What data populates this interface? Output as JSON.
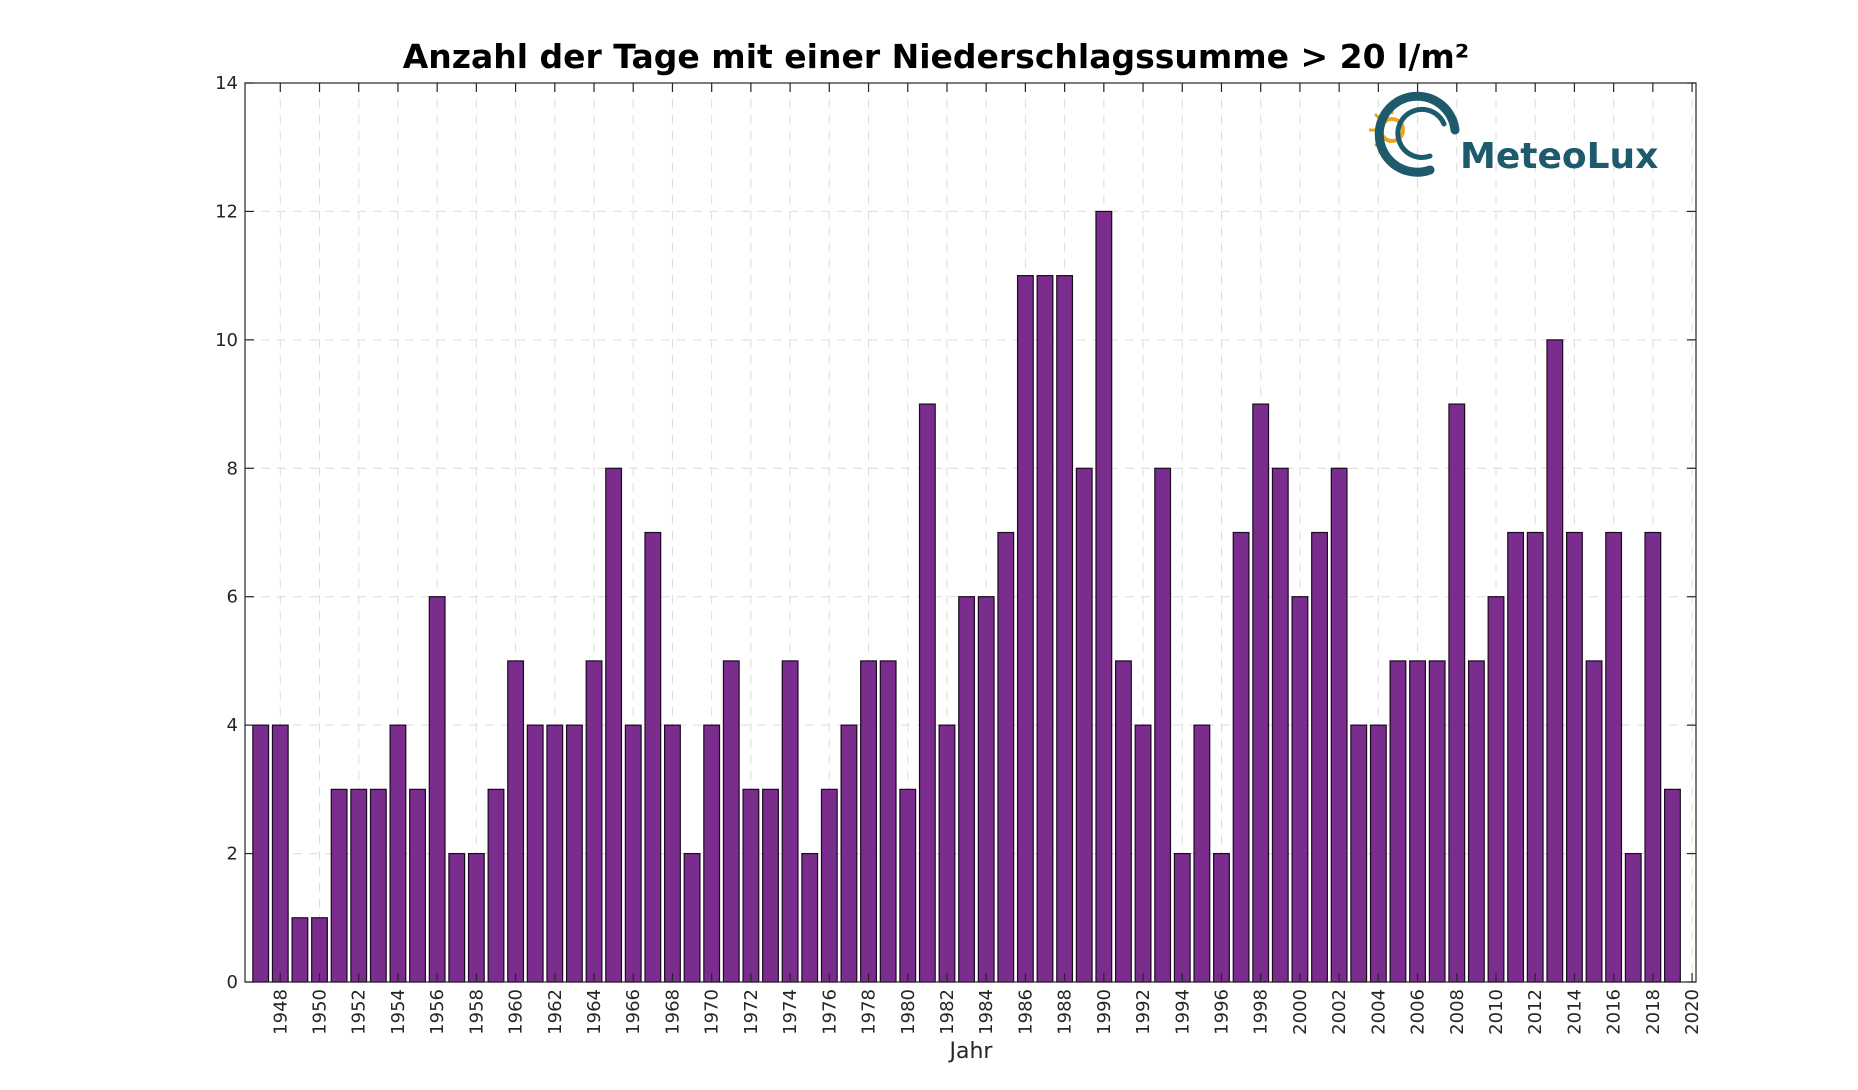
{
  "chart_data": {
    "type": "bar",
    "title": "Anzahl der Tage mit einer Niederschlagssumme > 20 l/m²",
    "xlabel": "Jahr",
    "ylabel": "",
    "x": [
      1947,
      1948,
      1949,
      1950,
      1951,
      1952,
      1953,
      1954,
      1955,
      1956,
      1957,
      1958,
      1959,
      1960,
      1961,
      1962,
      1963,
      1964,
      1965,
      1966,
      1967,
      1968,
      1969,
      1970,
      1971,
      1972,
      1973,
      1974,
      1975,
      1976,
      1977,
      1978,
      1979,
      1980,
      1981,
      1982,
      1983,
      1984,
      1985,
      1986,
      1987,
      1988,
      1989,
      1990,
      1991,
      1992,
      1993,
      1994,
      1995,
      1996,
      1997,
      1998,
      1999,
      2000,
      2001,
      2002,
      2003,
      2004,
      2005,
      2006,
      2007,
      2008,
      2009,
      2010,
      2011,
      2012,
      2013,
      2014,
      2015,
      2016,
      2017,
      2018,
      2019
    ],
    "values": [
      4,
      4,
      1,
      1,
      3,
      3,
      3,
      4,
      3,
      6,
      2,
      2,
      3,
      5,
      4,
      4,
      4,
      5,
      8,
      4,
      7,
      4,
      2,
      4,
      5,
      3,
      3,
      5,
      2,
      3,
      4,
      5,
      5,
      3,
      9,
      4,
      6,
      6,
      7,
      11,
      11,
      11,
      8,
      12,
      5,
      4,
      8,
      2,
      4,
      2,
      7,
      9,
      8,
      6,
      7,
      8,
      4,
      4,
      5,
      5,
      5,
      9,
      5,
      6,
      7,
      7,
      10,
      7,
      5,
      7,
      2,
      7,
      3
    ],
    "xlim": [
      1946.2,
      2020.2
    ],
    "ylim": [
      0,
      14
    ],
    "xticks": [
      "1948",
      "1950",
      "1952",
      "1954",
      "1956",
      "1958",
      "1960",
      "1962",
      "1964",
      "1966",
      "1968",
      "1970",
      "1972",
      "1974",
      "1976",
      "1978",
      "1980",
      "1982",
      "1984",
      "1986",
      "1988",
      "1990",
      "1992",
      "1994",
      "1996",
      "1998",
      "2000",
      "2002",
      "2004",
      "2006",
      "2008",
      "2010",
      "2012",
      "2014",
      "2016",
      "2018",
      "2020"
    ],
    "yticks": [
      "0",
      "2",
      "4",
      "6",
      "8",
      "10",
      "12",
      "14"
    ],
    "grid": true,
    "bar_color": "#7b2d8e",
    "bar_edge_color": "#1a0a20"
  },
  "logo": {
    "text": "MeteoLux"
  },
  "colors": {
    "logo_teal": "#1d5a6b",
    "sun": "#f2a51a"
  }
}
